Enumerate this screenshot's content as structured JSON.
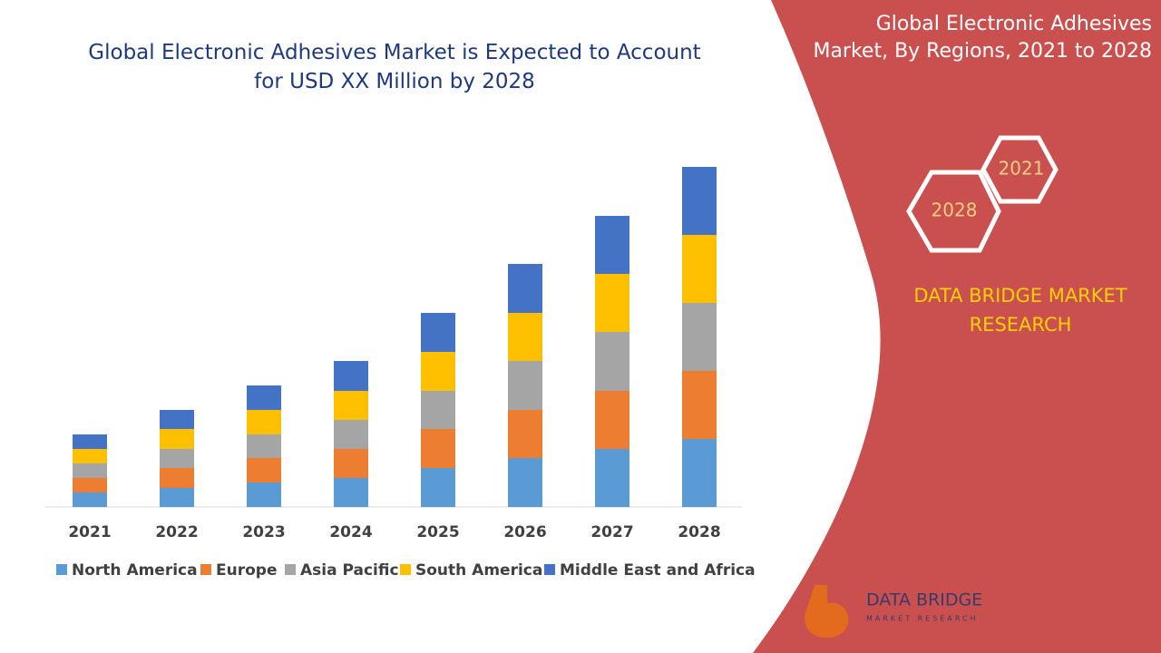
{
  "chart_data": {
    "type": "stacked_bar",
    "title": "Global Electronic Adhesives Market is Expected to Account for USD XX Million by 2028",
    "categories": [
      "2021",
      "2022",
      "2023",
      "2024",
      "2025",
      "2026",
      "2027",
      "2028"
    ],
    "series": [
      {
        "name": "North America",
        "color": "#5b9bd5",
        "values": [
          16,
          21,
          27,
          32,
          43,
          54,
          64,
          75
        ]
      },
      {
        "name": "Europe",
        "color": "#ed7d31",
        "values": [
          16,
          22,
          27,
          32,
          43,
          53,
          64,
          75
        ]
      },
      {
        "name": "Asia Pacific",
        "color": "#a5a5a5",
        "values": [
          16,
          21,
          26,
          32,
          42,
          54,
          65,
          75
        ]
      },
      {
        "name": "South America",
        "color": "#ffc000",
        "values": [
          16,
          22,
          27,
          32,
          43,
          53,
          64,
          75
        ]
      },
      {
        "name": "Middle East and Africa",
        "color": "#4472c4",
        "values": [
          16,
          21,
          27,
          33,
          43,
          54,
          64,
          75
        ]
      }
    ],
    "legend": "bottom"
  },
  "panel": {
    "title": "Global Electronic Adhesives Market, By Regions, 2021 to 2028",
    "hex_top": "2021",
    "hex_bottom": "2028",
    "brand": "DATA BRIDGE MARKET RESEARCH",
    "logo_name": "DATA BRIDGE",
    "logo_sub": "MARKET RESEARCH"
  }
}
